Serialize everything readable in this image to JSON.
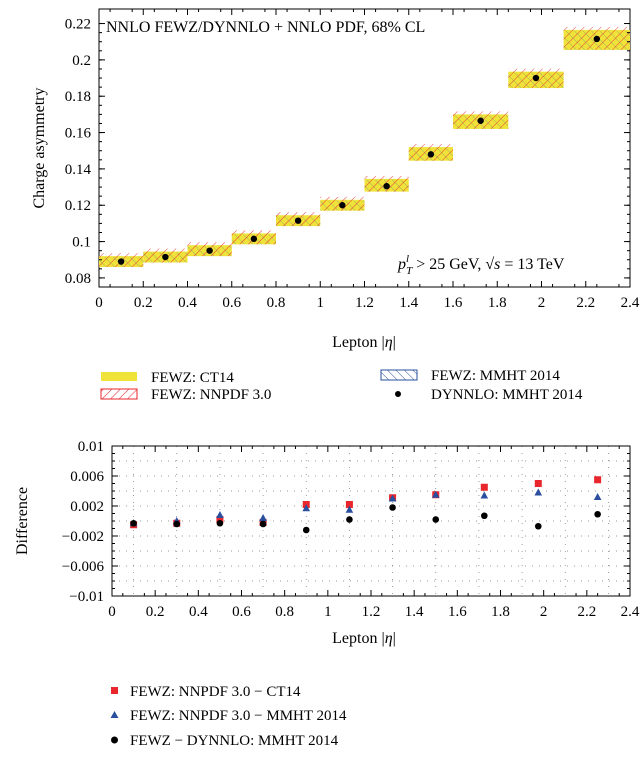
{
  "chart_data": [
    {
      "type": "bar",
      "title": "NNLO FEWZ/DYNNLO + NNLO PDF, 68% CL",
      "annotation": "p_T^l > 25 GeV, √s = 13 TeV",
      "annotation_parts": {
        "p": "p",
        "sub": "T",
        "sup": "l",
        "cut": " > 25 GeV, ",
        "root": "s",
        "energy": " = 13 TeV"
      },
      "xlabel": "Lepton |η|",
      "xlabel_parts": {
        "pre": "Lepton |",
        "sym": "η",
        "post": "|"
      },
      "ylabel": "Charge asymmetry",
      "xlim": [
        0,
        2.4
      ],
      "ylim": [
        0.075,
        0.228
      ],
      "x_ticks": [
        "0",
        "0.2",
        "0.4",
        "0.6",
        "0.8",
        "1",
        "1.2",
        "1.4",
        "1.6",
        "1.8",
        "2",
        "2.2",
        "2.4"
      ],
      "y_ticks": [
        "0.08",
        "0.1",
        "0.12",
        "0.14",
        "0.16",
        "0.18",
        "0.2",
        "0.22"
      ],
      "bins": [
        {
          "lo": 0.0,
          "hi": 0.2,
          "center": 0.1,
          "y": 0.089,
          "band_lo": 0.086,
          "band_hi": 0.092
        },
        {
          "lo": 0.2,
          "hi": 0.4,
          "center": 0.3,
          "y": 0.0915,
          "band_lo": 0.0885,
          "band_hi": 0.0945
        },
        {
          "lo": 0.4,
          "hi": 0.6,
          "center": 0.5,
          "y": 0.095,
          "band_lo": 0.092,
          "band_hi": 0.098
        },
        {
          "lo": 0.6,
          "hi": 0.8,
          "center": 0.7,
          "y": 0.1015,
          "band_lo": 0.0985,
          "band_hi": 0.1045
        },
        {
          "lo": 0.8,
          "hi": 1.0,
          "center": 0.9,
          "y": 0.1115,
          "band_lo": 0.1085,
          "band_hi": 0.1145
        },
        {
          "lo": 1.0,
          "hi": 1.2,
          "center": 1.1,
          "y": 0.12,
          "band_lo": 0.117,
          "band_hi": 0.123
        },
        {
          "lo": 1.2,
          "hi": 1.4,
          "center": 1.3,
          "y": 0.1305,
          "band_lo": 0.1275,
          "band_hi": 0.1345
        },
        {
          "lo": 1.4,
          "hi": 1.6,
          "center": 1.5,
          "y": 0.148,
          "band_lo": 0.1445,
          "band_hi": 0.152
        },
        {
          "lo": 1.6,
          "hi": 1.85,
          "center": 1.725,
          "y": 0.1665,
          "band_lo": 0.162,
          "band_hi": 0.17
        },
        {
          "lo": 1.85,
          "hi": 2.1,
          "center": 1.975,
          "y": 0.19,
          "band_lo": 0.1845,
          "band_hi": 0.1935
        },
        {
          "lo": 2.1,
          "hi": 2.4,
          "center": 2.25,
          "y": 0.2115,
          "band_lo": 0.2055,
          "band_hi": 0.2165
        }
      ],
      "legend": {
        "ct14": "FEWZ: CT14",
        "nnpdf": "FEWZ: NNPDF 3.0",
        "mmht": "FEWZ: MMHT 2014",
        "dynnlo": "DYNNLO: MMHT 2014"
      }
    },
    {
      "type": "scatter",
      "xlabel": "Lepton |η|",
      "xlabel_parts": {
        "pre": "Lepton |",
        "sym": "η",
        "post": "|"
      },
      "ylabel": "Difference",
      "xlim": [
        0,
        2.4
      ],
      "ylim": [
        -0.01,
        0.01
      ],
      "x_ticks": [
        "0",
        "0.2",
        "0.4",
        "0.6",
        "0.8",
        "1",
        "1.2",
        "1.4",
        "1.6",
        "1.8",
        "2",
        "2.2",
        "2.4"
      ],
      "y_ticks": [
        "0.01",
        "0.006",
        "0.002",
        "−0.002",
        "−0.006",
        "−0.01"
      ],
      "y_tick_values": [
        0.01,
        0.006,
        0.002,
        -0.002,
        -0.006,
        -0.01
      ],
      "x": [
        0.1,
        0.3,
        0.5,
        0.7,
        0.9,
        1.1,
        1.3,
        1.5,
        1.725,
        1.975,
        2.25
      ],
      "series": [
        {
          "name": "FEWZ: NNPDF 3.0 − CT14",
          "marker": "square",
          "color": "#e8262c",
          "values": [
            -0.0005,
            -0.0003,
            0.0002,
            -0.0002,
            0.0022,
            0.0022,
            0.0031,
            0.0035,
            0.0045,
            0.005,
            0.0055
          ]
        },
        {
          "name": "FEWZ: NNPDF 3.0 − MMHT 2014",
          "marker": "triangle",
          "color": "#2a4f9e",
          "values": [
            -0.0003,
            0.0,
            0.0008,
            0.0004,
            0.0017,
            0.0015,
            0.003,
            0.0035,
            0.0034,
            0.0038,
            0.0032
          ]
        },
        {
          "name": "FEWZ − DYNNLO: MMHT 2014",
          "marker": "circle",
          "color": "#000000",
          "values": [
            -0.0003,
            -0.0004,
            -0.0003,
            -0.0004,
            -0.0012,
            0.0002,
            0.0018,
            0.0002,
            0.0007,
            -0.0007,
            0.0009
          ]
        }
      ]
    }
  ],
  "colors": {
    "band_fill": "#efe33a",
    "hatch_red": "#e8262c",
    "hatch_blue": "#2a4f9e",
    "marker_black": "#000000"
  }
}
